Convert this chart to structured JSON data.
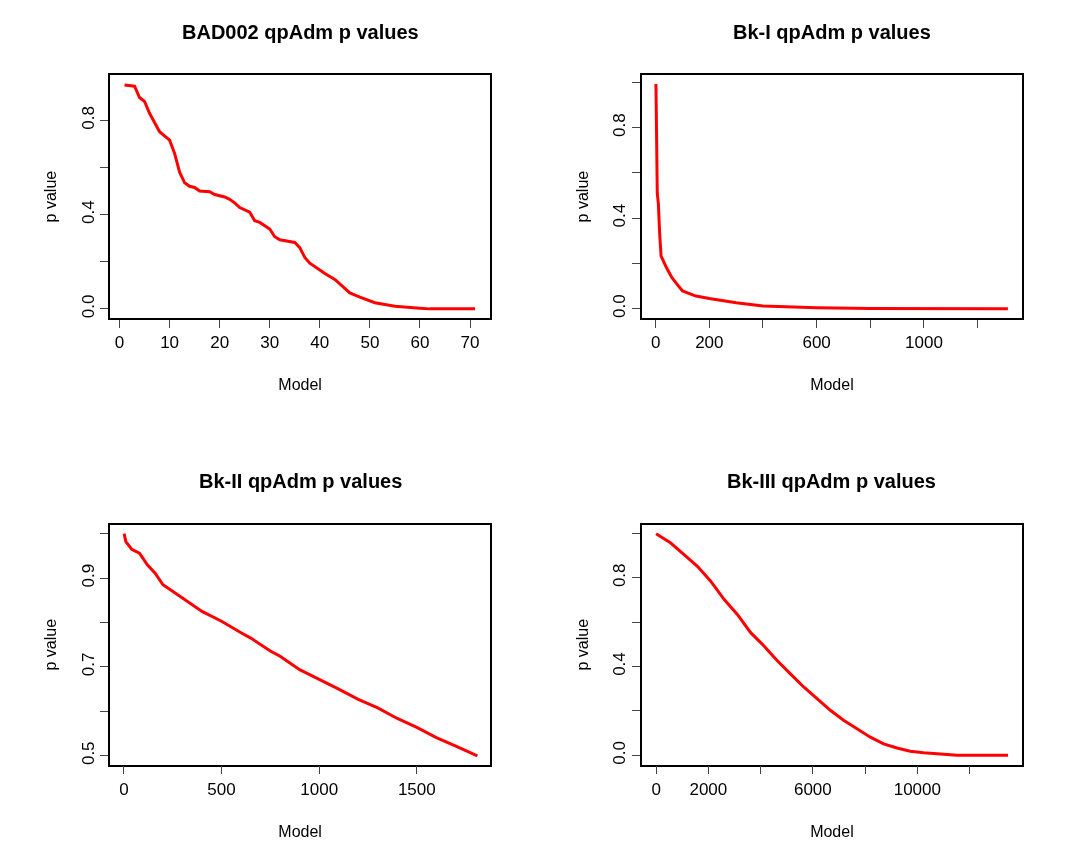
{
  "chart_data": [
    {
      "type": "line",
      "title": "BAD002 qpAdm p values",
      "xlabel": "Model",
      "ylabel": "p value",
      "x": [
        1,
        3,
        4,
        5,
        6,
        8,
        10,
        11,
        12,
        13,
        14,
        15,
        16,
        18,
        19,
        21,
        22,
        23,
        24,
        26,
        27,
        28,
        30,
        31,
        32,
        35,
        36,
        37,
        38,
        40,
        41,
        43,
        46,
        48,
        51,
        55,
        60,
        62,
        71
      ],
      "series": [
        {
          "color": "#ff0000",
          "values": [
            0.95,
            0.945,
            0.897,
            0.88,
            0.83,
            0.752,
            0.716,
            0.66,
            0.58,
            0.535,
            0.52,
            0.515,
            0.5,
            0.497,
            0.485,
            0.475,
            0.465,
            0.45,
            0.43,
            0.41,
            0.374,
            0.367,
            0.339,
            0.306,
            0.293,
            0.282,
            0.26,
            0.218,
            0.194,
            0.165,
            0.15,
            0.125,
            0.068,
            0.05,
            0.026,
            0.011,
            0.003,
            0.0,
            0.0
          ]
        }
      ],
      "xlim": [
        -1.86,
        74.0
      ],
      "ylim": [
        -0.038,
        0.991
      ],
      "xticks": [
        0,
        10,
        20,
        30,
        40,
        50,
        60,
        70
      ],
      "yticks": [
        {
          "value": 0,
          "label": "0.0"
        },
        {
          "value": 0.2,
          "label": null
        },
        0.4,
        {
          "value": 0.6,
          "label": null
        },
        0.8
      ]
    },
    {
      "type": "line",
      "title": "Bk-I qpAdm p values",
      "xlabel": "Model",
      "ylabel": "p value",
      "x": [
        1,
        6,
        10,
        15,
        20,
        40,
        60,
        80,
        100,
        150,
        200,
        300,
        400,
        600,
        800,
        1313
      ],
      "series": [
        {
          "color": "#ff0000",
          "values": [
            0.993,
            0.508,
            0.464,
            0.33,
            0.234,
            0.182,
            0.138,
            0.108,
            0.079,
            0.056,
            0.045,
            0.027,
            0.012,
            0.004,
            0.001,
            0.0
          ]
        }
      ],
      "xlim": [
        -51,
        1365
      ],
      "ylim": [
        -0.04,
        1.031
      ],
      "xticks": [
        0,
        200,
        {
          "value": 400,
          "label": null
        },
        600,
        {
          "value": 800,
          "label": null
        },
        1000,
        {
          "value": 1200,
          "label": null
        }
      ],
      "yticks": [
        {
          "value": 0,
          "label": "0.0"
        },
        {
          "value": 0.2,
          "label": null
        },
        0.4,
        {
          "value": 0.6,
          "label": null
        },
        0.8,
        {
          "value": 1.0,
          "label": null
        }
      ]
    },
    {
      "type": "line",
      "title": "Bk-II qpAdm p values",
      "xlabel": "Model",
      "ylabel": "p value",
      "x": [
        1,
        10,
        40,
        80,
        120,
        160,
        200,
        300,
        400,
        500,
        600,
        650,
        750,
        800,
        900,
        1000,
        1100,
        1200,
        1300,
        1400,
        1500,
        1600,
        1700,
        1810
      ],
      "series": [
        {
          "color": "#ff0000",
          "values": [
            1.0,
            0.982,
            0.965,
            0.956,
            0.93,
            0.911,
            0.885,
            0.855,
            0.825,
            0.803,
            0.777,
            0.765,
            0.736,
            0.724,
            0.694,
            0.672,
            0.65,
            0.627,
            0.608,
            0.584,
            0.564,
            0.541,
            0.522,
            0.5
          ]
        }
      ],
      "xlim": [
        -70,
        1875
      ],
      "ylim": [
        0.48,
        1.02
      ],
      "xticks": [
        0,
        500,
        1000,
        1500
      ],
      "yticks": [
        0.5,
        {
          "value": 0.6,
          "label": null
        },
        0.7,
        {
          "value": 0.8,
          "label": null
        },
        0.9,
        {
          "value": 1.0,
          "label": null
        }
      ]
    },
    {
      "type": "line",
      "title": "Bk-III qpAdm p values",
      "xlabel": "Model",
      "ylabel": "p value",
      "x": [
        1,
        560,
        1070,
        1580,
        2090,
        2600,
        3110,
        3620,
        4130,
        4640,
        5150,
        5660,
        6170,
        6680,
        7190,
        7690,
        8200,
        8710,
        9220,
        9730,
        10240,
        10880,
        11520,
        12150,
        13470
      ],
      "series": [
        {
          "color": "#ff0000",
          "values": [
            0.999,
            0.957,
            0.905,
            0.852,
            0.785,
            0.703,
            0.635,
            0.553,
            0.493,
            0.426,
            0.366,
            0.307,
            0.254,
            0.202,
            0.157,
            0.12,
            0.082,
            0.052,
            0.033,
            0.019,
            0.012,
            0.006,
            0.001,
            0.0,
            0.0
          ]
        }
      ],
      "xlim": [
        -540,
        14000
      ],
      "ylim": [
        -0.042,
        1.039
      ],
      "xticks": [
        0,
        2000,
        {
          "value": 4000,
          "label": null
        },
        6000,
        {
          "value": 8000,
          "label": null
        },
        10000,
        {
          "value": 12000,
          "label": null
        }
      ],
      "yticks": [
        {
          "value": 0,
          "label": "0.0"
        },
        {
          "value": 0.2,
          "label": null
        },
        0.4,
        {
          "value": 0.6,
          "label": null
        },
        0.8,
        {
          "value": 1.0,
          "label": null
        }
      ]
    }
  ]
}
